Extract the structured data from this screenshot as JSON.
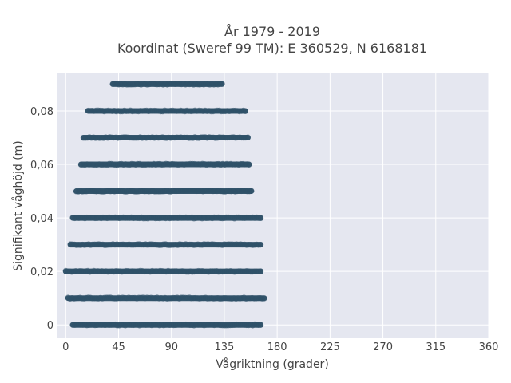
{
  "chart_data": {
    "type": "scatter",
    "title_line1": "År 1979 - 2019",
    "title_line2": "Koordinat (Sweref 99 TM): E 360529, N 6168181",
    "xlabel": "Vågriktning (grader)",
    "ylabel": "Signifikant våghöjd (m)",
    "xlim": [
      -7,
      360
    ],
    "ylim": [
      -0.005,
      0.094
    ],
    "grid": true,
    "x_ticks": [
      {
        "value": 0,
        "label": "0"
      },
      {
        "value": 45,
        "label": "45"
      },
      {
        "value": 90,
        "label": "90"
      },
      {
        "value": 135,
        "label": "135"
      },
      {
        "value": 180,
        "label": "180"
      },
      {
        "value": 225,
        "label": "225"
      },
      {
        "value": 270,
        "label": "270"
      },
      {
        "value": 315,
        "label": "315"
      },
      {
        "value": 360,
        "label": "360"
      }
    ],
    "y_ticks": [
      {
        "value": 0,
        "label": "0"
      },
      {
        "value": 0.02,
        "label": "0,02"
      },
      {
        "value": 0.04,
        "label": "0,04"
      },
      {
        "value": 0.06,
        "label": "0,06"
      },
      {
        "value": 0.08,
        "label": "0,08"
      }
    ],
    "point_color": "#2e5068",
    "plot_bg": "#e5e7f0",
    "grid_color": "#ffffff",
    "bands": [
      {
        "height": 0.0,
        "direction_min": 6,
        "direction_max": 166
      },
      {
        "height": 0.01,
        "direction_min": 2,
        "direction_max": 169
      },
      {
        "height": 0.02,
        "direction_min": 0,
        "direction_max": 166
      },
      {
        "height": 0.03,
        "direction_min": 4,
        "direction_max": 166
      },
      {
        "height": 0.04,
        "direction_min": 6,
        "direction_max": 166
      },
      {
        "height": 0.05,
        "direction_min": 9,
        "direction_max": 158
      },
      {
        "height": 0.06,
        "direction_min": 13,
        "direction_max": 156
      },
      {
        "height": 0.07,
        "direction_min": 15,
        "direction_max": 155
      },
      {
        "height": 0.08,
        "direction_min": 19,
        "direction_max": 153
      },
      {
        "height": 0.09,
        "direction_min": 40,
        "direction_max": 133
      }
    ]
  }
}
